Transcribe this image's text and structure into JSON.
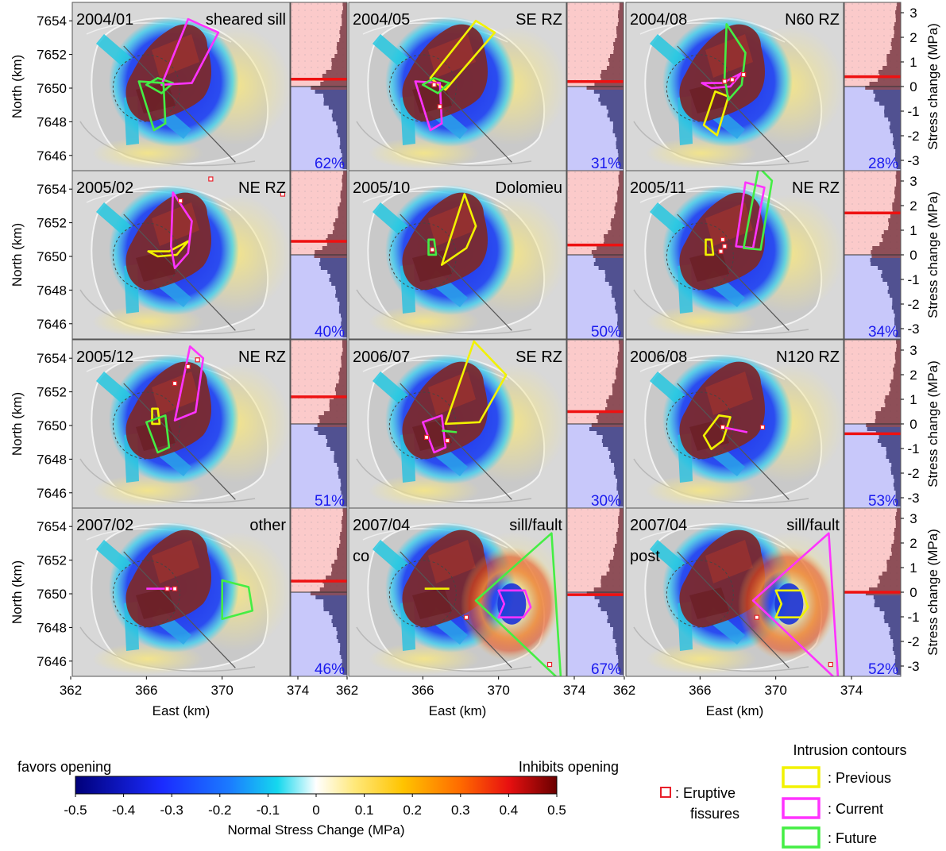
{
  "panels": [
    {
      "date": "2004/01",
      "label": "sheared sill",
      "sub": "",
      "pct": "62%",
      "line": 0.3
    },
    {
      "date": "2004/05",
      "label": "SE RZ",
      "sub": "",
      "pct": "31%",
      "line": 0.2
    },
    {
      "date": "2004/08",
      "label": "N60 RZ",
      "sub": "",
      "pct": "28%",
      "line": 0.4
    },
    {
      "date": "2005/02",
      "label": "NE RZ",
      "sub": "",
      "pct": "40%",
      "line": 0.55
    },
    {
      "date": "2005/10",
      "label": "Dolomieu",
      "sub": "",
      "pct": "50%",
      "line": 0.4
    },
    {
      "date": "2005/11",
      "label": "NE RZ",
      "sub": "",
      "pct": "34%",
      "line": 1.7
    },
    {
      "date": "2005/12",
      "label": "NE RZ",
      "sub": "",
      "pct": "51%",
      "line": 1.1
    },
    {
      "date": "2006/07",
      "label": "SE RZ",
      "sub": "",
      "pct": "30%",
      "line": 0.5
    },
    {
      "date": "2006/08",
      "label": "N120 RZ",
      "sub": "",
      "pct": "53%",
      "line": -0.4
    },
    {
      "date": "2007/02",
      "label": "other",
      "sub": "",
      "pct": "46%",
      "line": 0.45
    },
    {
      "date": "2007/04",
      "label": "sill/fault",
      "sub": "co",
      "pct": "67%",
      "line": -0.1
    },
    {
      "date": "2007/04",
      "label": "sill/fault",
      "sub": "post",
      "pct": "52%",
      "line": 0.0
    }
  ],
  "axes": {
    "north_label": "North (km)",
    "east_label": "East (km)",
    "stress_label": "Stress change (MPa)",
    "north_ticks": [
      7654,
      7652,
      7650,
      7648,
      7646
    ],
    "east_ticks": [
      362,
      366,
      370,
      374
    ],
    "stress_ticks": [
      3,
      2,
      1,
      0,
      -1,
      -2,
      -3
    ]
  },
  "colorbar": {
    "left_title": "favors opening",
    "right_title": "Inhibits opening",
    "ticks": [
      "-0.5",
      "-0.4",
      "-0.3",
      "-0.2",
      "-0.1",
      "0",
      "0.1",
      "0.2",
      "0.3",
      "0.4",
      "0.5"
    ],
    "title": "Normal Stress Change (MPa)"
  },
  "legend": {
    "fissure_label_1": ": Eruptive",
    "fissure_label_2": "fissures",
    "contours_title": "Intrusion contours",
    "previous": ": Previous",
    "current": ": Current",
    "future": ": Future"
  },
  "colors": {
    "previous": "#f2f200",
    "current": "#ff33ff",
    "future": "#44ee44",
    "fissure": "#e8202a",
    "percent": "#1a1aee",
    "stress_line": "#ee1111",
    "pos_bg": "#fbcaca",
    "neg_bg": "#c8c8fa"
  }
}
